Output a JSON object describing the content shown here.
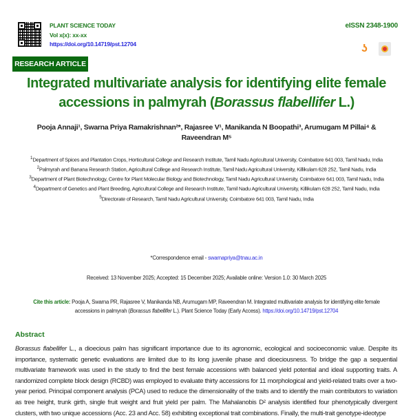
{
  "header": {
    "journal_name": "PLANT SCIENCE TODAY",
    "volume": "Vol x(x): xx-xx",
    "doi": "https://doi.org/10.14719/pst.12704",
    "eissn": "eISSN 2348-1900",
    "icons": [
      "qr-code-icon",
      "open-access-icon",
      "crossmark-icon"
    ],
    "article_type": "RESEARCH ARTICLE"
  },
  "title": {
    "main": "Integrated multivariate analysis for identifying elite female accessions in palmyrah (",
    "species": "Borassus flabellifer",
    "end": " L.)"
  },
  "authors": "Pooja Annaji¹, Swarna Priya Ramakrishnan²*, Rajasree V¹, Manikanda N Boopathi³, Arumugam M Pillai⁴ & Raveendran M⁵",
  "affiliations": [
    {
      "sup": "1",
      "text": "Department of Spices and Plantation Crops, Horticultural College and Research Institute, Tamil Nadu Agricultural University, Coimbatore 641 003, Tamil Nadu, India"
    },
    {
      "sup": "2",
      "text": "Palmyrah and Banana Research Station, Agricultural College and Research Institute, Tamil Nadu Agricultural University, Killikulam 628 252, Tamil Nadu, India"
    },
    {
      "sup": "3",
      "text": "Department of Plant Biotechnology, Centre for Plant Molecular Biology and Biotechnology, Tamil Nadu Agricultural University, Coimbatore 641 003, Tamil Nadu, India"
    },
    {
      "sup": "4",
      "text": "Department of Genetics and Plant Breeding, Agricultural College and Research Institute, Tamil Nadu Agricultural University, Killikulam 628 252, Tamil Nadu, India"
    },
    {
      "sup": "5",
      "text": "Directorate of Research, Tamil Nadu Agricultural University, Coimbatore 641 003, Tamil Nadu, India"
    }
  ],
  "correspondence": {
    "label": "*Correspondence email - ",
    "email": "swarnapriya@tnau.ac.in"
  },
  "dates": "Received: 13 November 2025; Accepted: 15 December 2025; Available online: Version 1.0: 30 March 2025",
  "cite": {
    "label": "Cite this article:",
    "text": " Pooja A, Swarna PR, Rajasree V, Manikanda NB, Arumugam MP, Raveendran M. Integrated multivariate analysis for identifying elite female accessions in palmyrah (",
    "species": "Borassus flabellifer",
    "text2": " L.). Plant Science Today (Early Access). ",
    "doi": "https://doi.org/10.14719/pst.12704"
  },
  "abstract": {
    "heading": "Abstract",
    "species": "Borassus flabellifer",
    "text": " L., a dioecious palm has significant importance due to its agronomic, ecological and socioeconomic value. Despite its importance, systematic genetic evaluations are limited due to its long juvenile phase and dioeciousness. To bridge the gap a sequential multivariate framework was used in the study to find the best female accessions with balanced yield potential and ideal supporting traits. A randomized complete block design (RCBD) was employed to evaluate thirty accessions for 11 morphological and yield-related traits over a two-year period. Principal component analysis (PCA) used to reduce the dimensionality of the traits and to identify the main contributors to variation as tree height, trunk girth, single fruit weight and fruit yield per palm. The Mahalanobis D² analysis identified four phenotypically divergent clusters, with two unique accessions (Acc. 23 and Acc. 58) exhibiting exceptional trait combinations. Finally, the multi-trait genotype-ideotype"
  }
}
